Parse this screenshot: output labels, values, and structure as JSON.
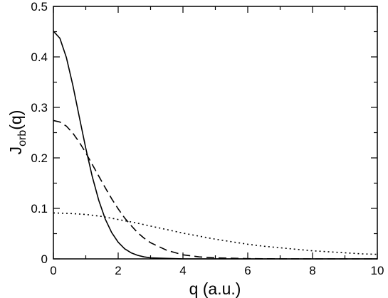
{
  "chart_data": {
    "type": "line",
    "title": "",
    "xlabel": "q (a.u.)",
    "ylabel": {
      "main": "J",
      "sub": "orb",
      "suffix": "(q)"
    },
    "xlim": [
      0,
      10
    ],
    "ylim": [
      0,
      0.5
    ],
    "x_major_ticks": [
      0,
      2,
      4,
      6,
      8,
      10
    ],
    "x_tick_labels": [
      "0",
      "2",
      "4",
      "6",
      "8",
      "10"
    ],
    "y_major_ticks": [
      0,
      0.1,
      0.2,
      0.3,
      0.4,
      0.5
    ],
    "y_tick_labels": [
      "0",
      "0.1",
      "0.2",
      "0.3",
      "0.4",
      "0.5"
    ],
    "grid": false,
    "legend": "none",
    "series": [
      {
        "style": "solid",
        "color": "#000000",
        "x": [
          0,
          0.2,
          0.4,
          0.6,
          0.8,
          1.0,
          1.2,
          1.4,
          1.6,
          1.8,
          2.0,
          2.2,
          2.4,
          2.6,
          2.8,
          3.0,
          3.5,
          4.0,
          5.0,
          6.0,
          8.0,
          10.0
        ],
        "values": [
          0.451,
          0.437,
          0.399,
          0.344,
          0.281,
          0.219,
          0.163,
          0.116,
          0.079,
          0.052,
          0.033,
          0.02,
          0.012,
          0.007,
          0.004,
          0.002,
          0.001,
          0.0,
          0.0,
          0.0,
          0.0,
          0.0
        ]
      },
      {
        "style": "dashed",
        "color": "#000000",
        "x": [
          0,
          0.2,
          0.4,
          0.6,
          0.8,
          1.0,
          1.2,
          1.4,
          1.6,
          1.8,
          2.0,
          2.2,
          2.4,
          2.6,
          2.8,
          3.0,
          3.5,
          4.0,
          4.5,
          5.0,
          6.0,
          7.0,
          8.0,
          10.0
        ],
        "values": [
          0.274,
          0.271,
          0.263,
          0.249,
          0.231,
          0.21,
          0.187,
          0.164,
          0.141,
          0.119,
          0.099,
          0.081,
          0.066,
          0.052,
          0.041,
          0.032,
          0.017,
          0.008,
          0.004,
          0.002,
          0.0005,
          0.0001,
          0.0,
          0.0
        ]
      },
      {
        "style": "dotted",
        "color": "#000000",
        "x": [
          0,
          0.5,
          1.0,
          1.5,
          2.0,
          2.5,
          3.0,
          3.5,
          4.0,
          4.5,
          5.0,
          5.5,
          6.0,
          6.5,
          7.0,
          7.5,
          8.0,
          8.5,
          9.0,
          9.5,
          10.0
        ],
        "values": [
          0.091,
          0.09,
          0.088,
          0.084,
          0.078,
          0.072,
          0.065,
          0.058,
          0.051,
          0.045,
          0.039,
          0.034,
          0.029,
          0.025,
          0.022,
          0.019,
          0.016,
          0.014,
          0.012,
          0.01,
          0.009
        ]
      }
    ]
  }
}
